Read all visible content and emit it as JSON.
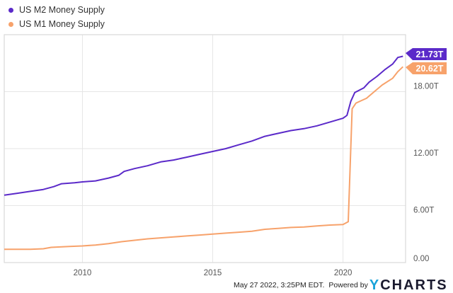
{
  "legend": [
    {
      "label": "US M2 Money Supply",
      "color": "#5b2ac9"
    },
    {
      "label": "US M1 Money Supply",
      "color": "#f7a26b"
    }
  ],
  "end_labels": {
    "m2": "21.73T",
    "m1": "20.62T"
  },
  "y_ticks": [
    "18.00T",
    "12.00T",
    "6.00T",
    "0.00"
  ],
  "x_ticks": [
    "2010",
    "2015",
    "2020"
  ],
  "footer": {
    "timestamp": "May 27 2022, 3:25PM EDT.",
    "powered_by": "Powered by",
    "brand_y": "Y",
    "brand_rest": "CHARTS"
  },
  "chart_data": {
    "type": "line",
    "title": "",
    "xlabel": "",
    "ylabel": "",
    "ylim": [
      0,
      24
    ],
    "xlim": [
      2007.0,
      2022.4
    ],
    "y_tick_values": [
      0,
      6,
      12,
      18
    ],
    "x_tick_values": [
      2010,
      2015,
      2020
    ],
    "grid": true,
    "legend_position": "top-left",
    "series": [
      {
        "name": "US M2 Money Supply",
        "color": "#5b2ac9",
        "last_value": 21.73,
        "points": [
          [
            2007.0,
            7.1
          ],
          [
            2007.5,
            7.3
          ],
          [
            2008.0,
            7.5
          ],
          [
            2008.5,
            7.7
          ],
          [
            2008.9,
            8.0
          ],
          [
            2009.2,
            8.3
          ],
          [
            2009.7,
            8.4
          ],
          [
            2010.0,
            8.5
          ],
          [
            2010.5,
            8.6
          ],
          [
            2011.0,
            8.9
          ],
          [
            2011.4,
            9.2
          ],
          [
            2011.6,
            9.6
          ],
          [
            2012.0,
            9.9
          ],
          [
            2012.5,
            10.2
          ],
          [
            2013.0,
            10.6
          ],
          [
            2013.5,
            10.8
          ],
          [
            2014.0,
            11.1
          ],
          [
            2014.5,
            11.4
          ],
          [
            2015.0,
            11.7
          ],
          [
            2015.5,
            12.0
          ],
          [
            2016.0,
            12.4
          ],
          [
            2016.5,
            12.8
          ],
          [
            2017.0,
            13.3
          ],
          [
            2017.5,
            13.6
          ],
          [
            2018.0,
            13.9
          ],
          [
            2018.5,
            14.1
          ],
          [
            2019.0,
            14.4
          ],
          [
            2019.5,
            14.8
          ],
          [
            2020.0,
            15.2
          ],
          [
            2020.15,
            15.5
          ],
          [
            2020.3,
            17.0
          ],
          [
            2020.45,
            17.9
          ],
          [
            2020.8,
            18.4
          ],
          [
            2021.0,
            19.0
          ],
          [
            2021.3,
            19.6
          ],
          [
            2021.6,
            20.3
          ],
          [
            2021.9,
            20.9
          ],
          [
            2022.1,
            21.6
          ],
          [
            2022.3,
            21.73
          ]
        ]
      },
      {
        "name": "US M1 Money Supply",
        "color": "#f7a26b",
        "last_value": 20.62,
        "points": [
          [
            2007.0,
            1.4
          ],
          [
            2007.5,
            1.4
          ],
          [
            2008.0,
            1.4
          ],
          [
            2008.5,
            1.45
          ],
          [
            2008.8,
            1.6
          ],
          [
            2009.5,
            1.7
          ],
          [
            2010.0,
            1.75
          ],
          [
            2010.5,
            1.85
          ],
          [
            2011.0,
            2.0
          ],
          [
            2011.5,
            2.2
          ],
          [
            2012.0,
            2.35
          ],
          [
            2012.5,
            2.5
          ],
          [
            2013.0,
            2.6
          ],
          [
            2013.5,
            2.7
          ],
          [
            2014.0,
            2.8
          ],
          [
            2014.5,
            2.9
          ],
          [
            2015.0,
            3.0
          ],
          [
            2015.5,
            3.1
          ],
          [
            2016.0,
            3.2
          ],
          [
            2016.5,
            3.3
          ],
          [
            2017.0,
            3.5
          ],
          [
            2017.5,
            3.6
          ],
          [
            2018.0,
            3.7
          ],
          [
            2018.5,
            3.75
          ],
          [
            2019.0,
            3.85
          ],
          [
            2019.5,
            3.95
          ],
          [
            2020.0,
            4.0
          ],
          [
            2020.2,
            4.3
          ],
          [
            2020.35,
            16.2
          ],
          [
            2020.5,
            16.8
          ],
          [
            2020.9,
            17.3
          ],
          [
            2021.2,
            18.0
          ],
          [
            2021.5,
            18.7
          ],
          [
            2021.9,
            19.4
          ],
          [
            2022.1,
            20.1
          ],
          [
            2022.3,
            20.62
          ]
        ]
      }
    ]
  }
}
